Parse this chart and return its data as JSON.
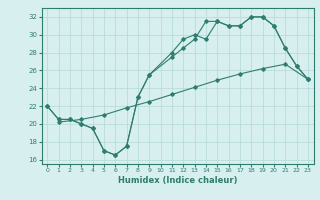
{
  "line1_x": [
    0,
    1,
    2,
    3,
    4,
    5,
    6,
    7,
    8,
    9,
    11,
    12,
    13,
    14,
    15,
    16,
    17,
    18,
    19,
    20,
    21,
    22,
    23
  ],
  "line1_y": [
    22,
    20.5,
    20.5,
    20,
    19.5,
    17,
    16.5,
    17.5,
    23,
    25.5,
    28,
    29.5,
    30,
    29.5,
    31.5,
    31,
    31,
    32,
    32,
    31,
    28.5,
    26.5,
    25
  ],
  "line2_x": [
    1,
    3,
    5,
    7,
    9,
    11,
    13,
    15,
    17,
    19,
    21,
    23
  ],
  "line2_y": [
    20.2,
    20.5,
    21.0,
    21.8,
    22.5,
    23.3,
    24.1,
    24.9,
    25.6,
    26.2,
    26.7,
    25.0
  ],
  "line3_x": [
    0,
    1,
    2,
    3,
    4,
    5,
    6,
    7,
    8,
    9,
    11,
    12,
    13,
    14,
    15,
    16,
    17,
    18,
    19,
    20,
    21,
    22,
    23
  ],
  "line3_y": [
    22,
    20.5,
    20.5,
    20,
    19.5,
    17,
    16.5,
    17.5,
    23,
    25.5,
    27.5,
    28.5,
    29.5,
    31.5,
    31.5,
    31,
    31,
    32,
    32,
    31,
    28.5,
    26.5,
    25
  ],
  "color": "#2e7d6e",
  "bg_color": "#d8efef",
  "grid_color": "#b5d8d8",
  "xlabel": "Humidex (Indice chaleur)",
  "ylim": [
    15.5,
    33
  ],
  "xlim": [
    -0.5,
    23.5
  ],
  "yticks": [
    16,
    18,
    20,
    22,
    24,
    26,
    28,
    30,
    32
  ],
  "xticks": [
    0,
    1,
    2,
    3,
    4,
    5,
    6,
    7,
    8,
    9,
    10,
    11,
    12,
    13,
    14,
    15,
    16,
    17,
    18,
    19,
    20,
    21,
    22,
    23
  ]
}
